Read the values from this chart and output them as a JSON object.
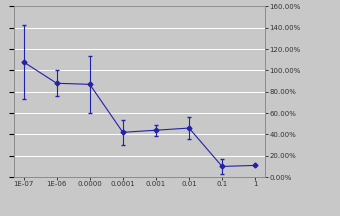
{
  "x": [
    1e-07,
    1e-06,
    1e-05,
    0.0001,
    0.001,
    0.01,
    0.1,
    1
  ],
  "y": [
    1.08,
    0.88,
    0.87,
    0.42,
    0.44,
    0.46,
    0.1,
    0.11
  ],
  "yerr_low": [
    0.35,
    0.12,
    0.27,
    0.12,
    0.05,
    0.1,
    0.07,
    0.0
  ],
  "yerr_high": [
    0.35,
    0.12,
    0.27,
    0.12,
    0.05,
    0.1,
    0.07,
    0.0
  ],
  "line_color": "#2222aa",
  "marker": "D",
  "markersize": 2.5,
  "linewidth": 0.8,
  "background_color": "#c8c8c8",
  "plot_bg": "#c8c8c8",
  "ylim": [
    0.0,
    1.6
  ],
  "yticks": [
    0.0,
    0.2,
    0.4,
    0.6,
    0.8,
    1.0,
    1.2,
    1.4,
    1.6
  ],
  "ytick_labels": [
    "0.00%",
    "20.00%",
    "40.00%",
    "60.00%",
    "80.00%",
    "100.00%",
    "120.00%",
    "140.00%",
    "160.00%"
  ],
  "xtick_labels": [
    "1E-07",
    "1E-06",
    "0.0000",
    "0.0001",
    "0.001",
    "0.01",
    "0.1",
    "1"
  ],
  "grid_color": "#ffffff",
  "elinewidth": 0.8,
  "capsize": 1.5
}
